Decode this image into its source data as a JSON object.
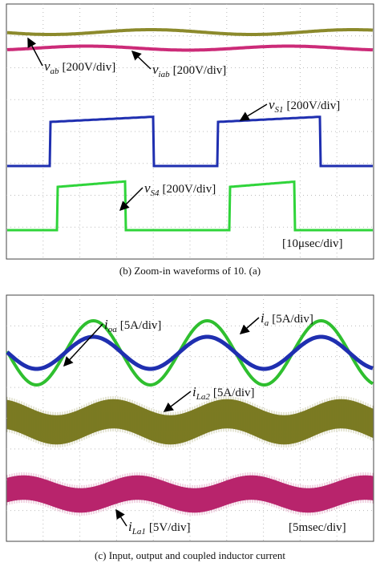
{
  "panels": [
    {
      "labels": [
        {
          "symbol": "v",
          "sub": "ab",
          "scale": "[200V/div]"
        },
        {
          "symbol": "v",
          "sub": "iab",
          "scale": "[200V/div]"
        },
        {
          "symbol": "v",
          "sub": "S1",
          "scale": "[200V/div]"
        },
        {
          "symbol": "v",
          "sub": "S4",
          "scale": "[200V/div]"
        }
      ],
      "timebase": "[10μsec/div]",
      "caption": "(b) Zoom-in waveforms of 10. (a)"
    },
    {
      "labels": [
        {
          "symbol": "i",
          "sub": "oa",
          "scale": "[5A/div]"
        },
        {
          "symbol": "i",
          "sub": "a",
          "scale": "[5A/div]"
        },
        {
          "symbol": "i",
          "sub": "La2",
          "scale": "[5A/div]"
        },
        {
          "symbol": "i",
          "sub": "La1",
          "scale": "[5V/div]"
        }
      ],
      "timebase": "[5msec/div]",
      "caption": "(c) Input, output and coupled inductor current"
    }
  ]
}
